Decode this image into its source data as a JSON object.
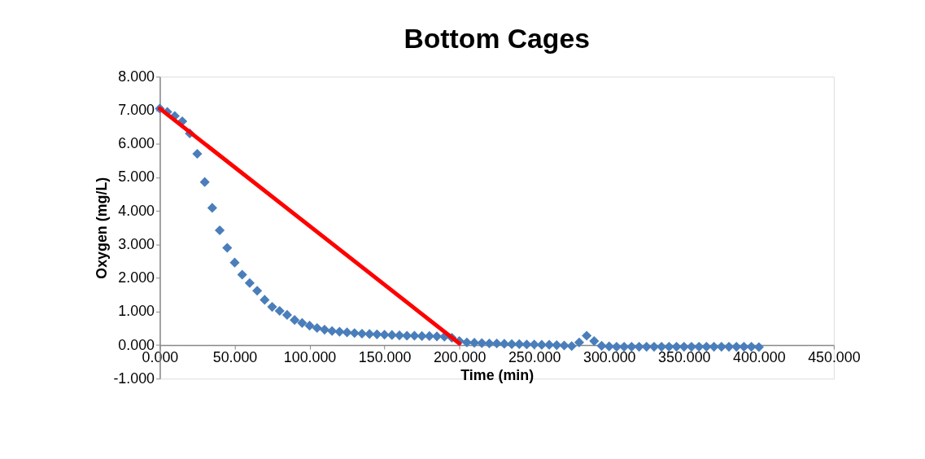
{
  "chart_data": {
    "type": "scatter",
    "title": "Bottom Cages",
    "xlabel": "Time (min)",
    "ylabel": "Oxygen (mg/L)",
    "xlim": [
      0,
      450
    ],
    "xticks": [
      {
        "value": 0,
        "label": "0.000"
      },
      {
        "value": 50,
        "label": "50.000"
      },
      {
        "value": 100,
        "label": "100.000"
      },
      {
        "value": 150,
        "label": "150.000"
      },
      {
        "value": 200,
        "label": "200.000"
      },
      {
        "value": 250,
        "label": "250.000"
      },
      {
        "value": 300,
        "label": "300.000"
      },
      {
        "value": 350,
        "label": "350.000"
      },
      {
        "value": 400,
        "label": "400.000"
      },
      {
        "value": 450,
        "label": "450.000"
      }
    ],
    "ylim": [
      -1,
      8
    ],
    "yticks": [
      {
        "value": -1,
        "label": "-1.000"
      },
      {
        "value": 0,
        "label": "0.000"
      },
      {
        "value": 1,
        "label": "1.000"
      },
      {
        "value": 2,
        "label": "2.000"
      },
      {
        "value": 3,
        "label": "3.000"
      },
      {
        "value": 4,
        "label": "4.000"
      },
      {
        "value": 5,
        "label": "5.000"
      },
      {
        "value": 6,
        "label": "6.000"
      },
      {
        "value": 7,
        "label": "7.000"
      },
      {
        "value": 8,
        "label": "8.000"
      }
    ],
    "grid": false,
    "marker": "diamond",
    "series": [
      {
        "color": "#4a7ebb",
        "x": [
          0,
          5,
          10,
          15,
          20,
          25,
          30,
          35,
          40,
          45,
          50,
          55,
          60,
          65,
          70,
          75,
          80,
          85,
          90,
          95,
          100,
          105,
          110,
          115,
          120,
          125,
          130,
          135,
          140,
          145,
          150,
          155,
          160,
          165,
          170,
          175,
          180,
          185,
          190,
          195,
          200,
          205,
          210,
          215,
          220,
          225,
          230,
          235,
          240,
          245,
          250,
          255,
          260,
          265,
          270,
          275,
          280,
          285,
          290,
          295,
          300,
          305,
          310,
          315,
          320,
          325,
          330,
          335,
          340,
          345,
          350,
          355,
          360,
          365,
          370,
          375,
          380,
          385,
          390,
          395,
          400
        ],
        "values": [
          7.05,
          6.95,
          6.83,
          6.67,
          6.31,
          5.7,
          4.86,
          4.09,
          3.42,
          2.9,
          2.46,
          2.1,
          1.85,
          1.62,
          1.35,
          1.14,
          1.02,
          0.9,
          0.75,
          0.66,
          0.58,
          0.51,
          0.46,
          0.42,
          0.4,
          0.38,
          0.36,
          0.34,
          0.33,
          0.32,
          0.31,
          0.3,
          0.29,
          0.28,
          0.28,
          0.27,
          0.27,
          0.26,
          0.25,
          0.22,
          0.12,
          0.08,
          0.07,
          0.06,
          0.05,
          0.05,
          0.04,
          0.03,
          0.03,
          0.02,
          0.02,
          0.01,
          0.01,
          0.0,
          -0.01,
          -0.03,
          0.08,
          0.28,
          0.12,
          -0.02,
          -0.04,
          -0.05,
          -0.05,
          -0.05,
          -0.05,
          -0.05,
          -0.05,
          -0.05,
          -0.05,
          -0.05,
          -0.05,
          -0.05,
          -0.05,
          -0.05,
          -0.05,
          -0.05,
          -0.05,
          -0.05,
          -0.05,
          -0.05,
          -0.06
        ]
      },
      {
        "type": "line",
        "color": "#ff0000",
        "line_style": "solid",
        "marker": "none",
        "x": [
          0,
          200
        ],
        "values": [
          7.05,
          0.05
        ]
      }
    ]
  }
}
